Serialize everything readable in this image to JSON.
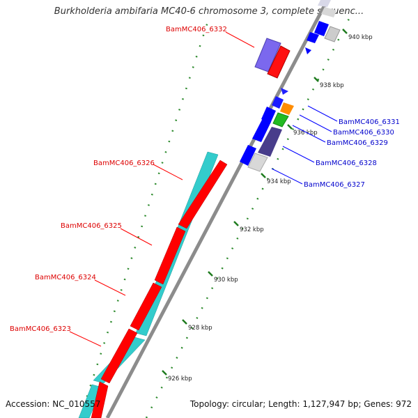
{
  "title": "Burkholderia ambifaria MC40-6 chromosome 3, complete sequenc...",
  "footer": {
    "accession_label": "Accession: NC_010557",
    "topology_label": "Topology: circular; Length: 1,127,947 bp; Genes: 972"
  },
  "colors": {
    "forward_strand": "#ff0000",
    "reverse_strand": "#0000ff",
    "cyan_gene": "#33cccc",
    "purple_gene": "#6a5acd",
    "backbone": "#888888",
    "tick": "#228b22"
  },
  "ticks": [
    {
      "label": "926 kbp"
    },
    {
      "label": "928 kbp"
    },
    {
      "label": "930 kbp"
    },
    {
      "label": "932 kbp"
    },
    {
      "label": "934 kbp"
    },
    {
      "label": "936 kbp"
    },
    {
      "label": "938 kbp"
    },
    {
      "label": "940 kbp"
    }
  ],
  "gene_labels_left": [
    {
      "text": "BamMC406_6332"
    },
    {
      "text": "BamMC406_6326"
    },
    {
      "text": "BamMC406_6325"
    },
    {
      "text": "BamMC406_6324"
    },
    {
      "text": "BamMC406_6323"
    }
  ],
  "gene_labels_right": [
    {
      "text": "BamMC406_6331"
    },
    {
      "text": "BamMC406_6330"
    },
    {
      "text": "BamMC406_6329"
    },
    {
      "text": "BamMC406_6328"
    },
    {
      "text": "BamMC406_6327"
    }
  ]
}
